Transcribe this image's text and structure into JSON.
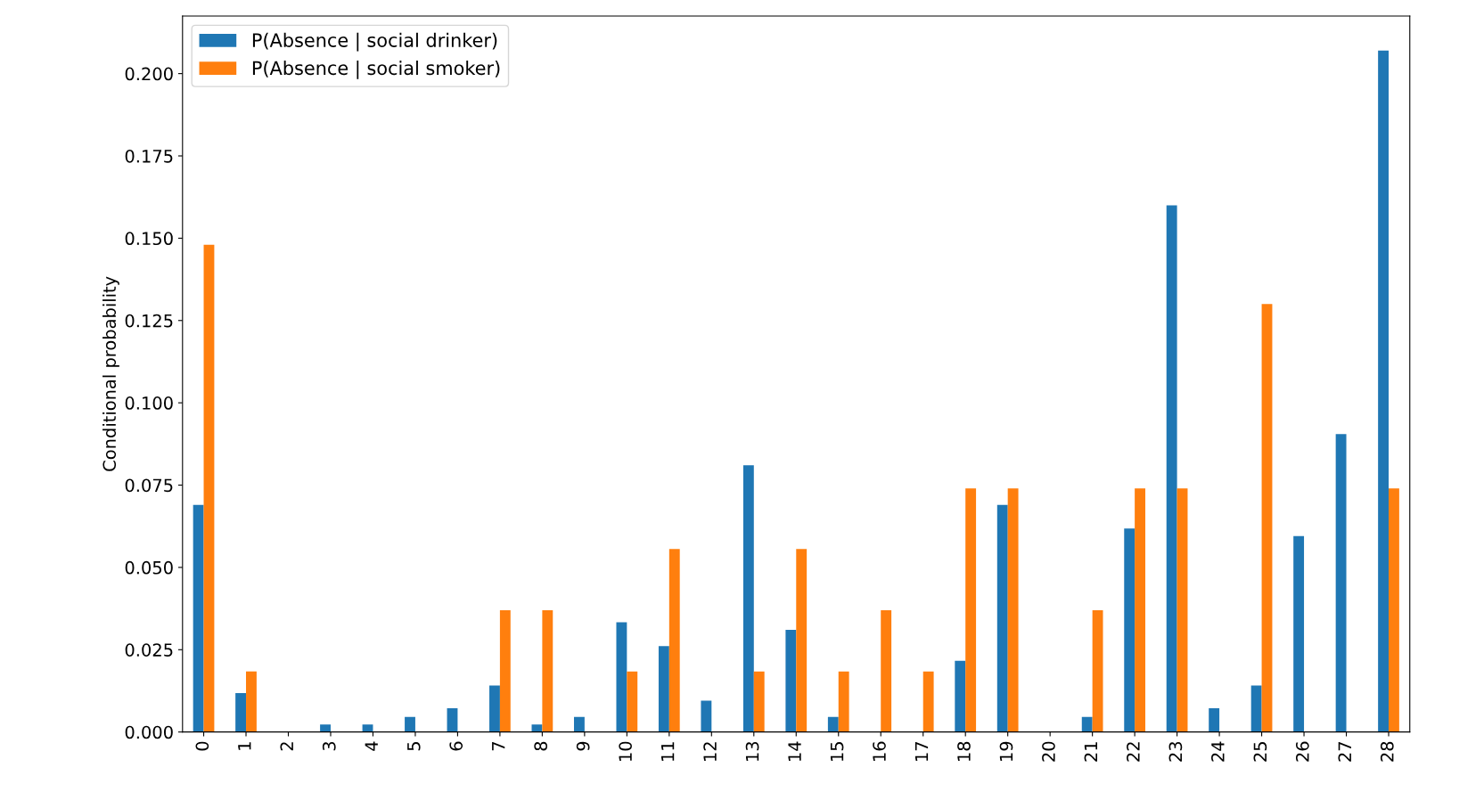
{
  "chart_data": {
    "type": "bar",
    "ylabel": "Conditional probability",
    "categories": [
      "0",
      "1",
      "2",
      "3",
      "4",
      "5",
      "6",
      "7",
      "8",
      "9",
      "10",
      "11",
      "12",
      "13",
      "14",
      "15",
      "16",
      "17",
      "18",
      "19",
      "20",
      "21",
      "22",
      "23",
      "24",
      "25",
      "26",
      "27",
      "28"
    ],
    "series": [
      {
        "name": "P(Absence | social drinker)",
        "color": "#1f77b4",
        "values": [
          0.069,
          0.0118,
          0,
          0.0023,
          0.0023,
          0.0046,
          0.0072,
          0.0141,
          0.0023,
          0.0046,
          0.0333,
          0.0261,
          0.0095,
          0.081,
          0.031,
          0.0046,
          0,
          0,
          0.0216,
          0.069,
          0,
          0.0046,
          0.0618,
          0.16,
          0.0072,
          0.0141,
          0.0595,
          0.0905,
          0.207
        ]
      },
      {
        "name": "P(Absence | social smoker)",
        "color": "#ff7f0e",
        "values": [
          0.148,
          0.0184,
          0,
          0,
          0,
          0,
          0,
          0.037,
          0.037,
          0,
          0.0184,
          0.0556,
          0,
          0.0184,
          0.0556,
          0.0184,
          0.037,
          0.0184,
          0.074,
          0.074,
          0,
          0.037,
          0.074,
          0.074,
          0,
          0.13,
          0,
          0,
          0.074
        ]
      }
    ],
    "ylim": [
      0,
      0.2175
    ],
    "yticks": [
      {
        "value": 0,
        "label": "0.000"
      },
      {
        "value": 0.025,
        "label": "0.025"
      },
      {
        "value": 0.05,
        "label": "0.050"
      },
      {
        "value": 0.075,
        "label": "0.075"
      },
      {
        "value": 0.1,
        "label": "0.100"
      },
      {
        "value": 0.125,
        "label": "0.125"
      },
      {
        "value": 0.15,
        "label": "0.150"
      },
      {
        "value": 0.175,
        "label": "0.175"
      },
      {
        "value": 0.2,
        "label": "0.200"
      }
    ],
    "legend": "top left",
    "grid": false
  }
}
